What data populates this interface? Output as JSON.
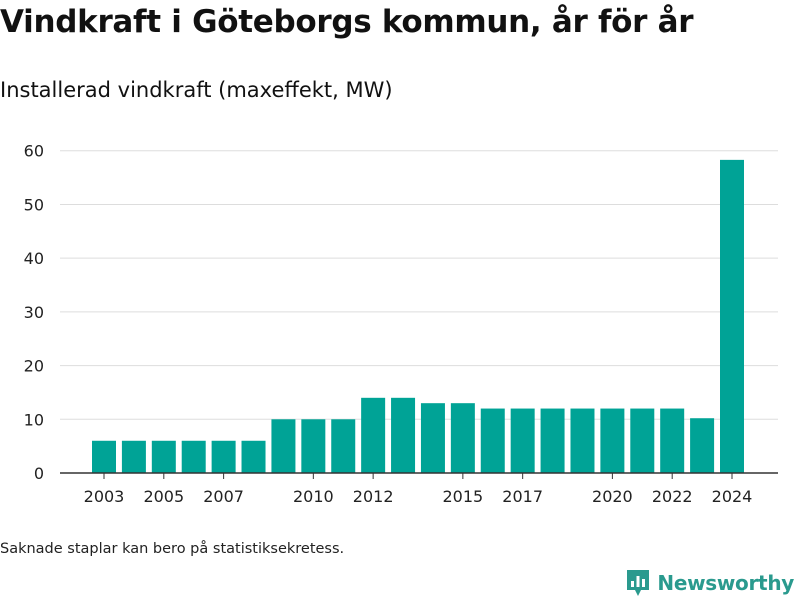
{
  "header": {
    "title": "Vindkraft i Göteborgs kommun, år för år",
    "subtitle": "Installerad vindkraft (maxeffekt, MW)"
  },
  "footer": {
    "note": "Saknade staplar kan bero på statistiksekretess.",
    "brand": "Newsworthy"
  },
  "colors": {
    "bar": "#00a396",
    "grid": "#dddddd",
    "axis": "#333333",
    "brand": "#2a9a8e"
  },
  "chart_data": {
    "type": "bar",
    "categories": [
      "2003",
      "2004",
      "2005",
      "2006",
      "2007",
      "2008",
      "2009",
      "2010",
      "2011",
      "2012",
      "2013",
      "2014",
      "2015",
      "2016",
      "2017",
      "2018",
      "2019",
      "2020",
      "2021",
      "2022",
      "2023",
      "2024"
    ],
    "values": [
      6,
      6,
      6,
      6,
      6,
      6,
      10,
      10,
      10,
      14,
      14,
      13,
      13,
      12,
      12,
      12,
      12,
      12,
      12,
      12,
      10.2,
      58.3
    ],
    "x_tick_labels": [
      "2003",
      "2005",
      "2007",
      "2010",
      "2012",
      "2015",
      "2017",
      "2020",
      "2022",
      "2024"
    ],
    "y_ticks": [
      0,
      10,
      20,
      30,
      40,
      50,
      60
    ],
    "ylim": [
      0,
      62
    ],
    "grid": true,
    "legend": "none"
  }
}
